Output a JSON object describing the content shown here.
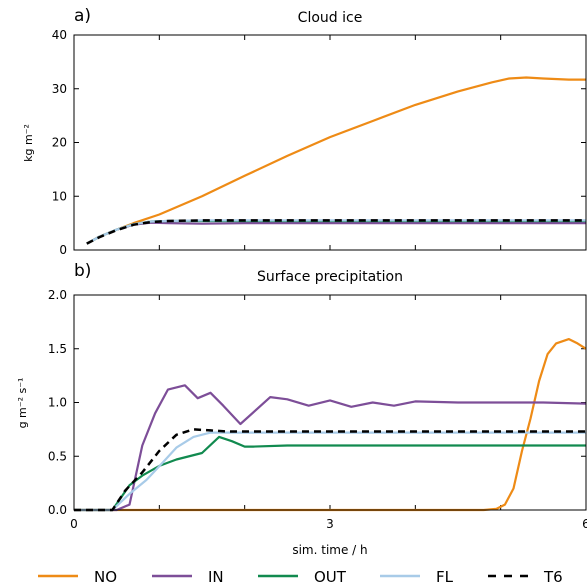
{
  "chart_data": [
    {
      "panel_label": "a)",
      "type": "line",
      "title": "Cloud ice",
      "xlabel": "",
      "ylabel": "kg m⁻²",
      "xlim": [
        0,
        6
      ],
      "ylim": [
        0,
        40
      ],
      "yticks": [
        "0",
        "10",
        "20",
        "30",
        "40"
      ],
      "grid": false,
      "series": [
        {
          "name": "NO",
          "color": "#ee8b16",
          "x": [
            0.15,
            0.3,
            0.5,
            0.7,
            1.0,
            1.5,
            2.0,
            2.5,
            3.0,
            3.5,
            4.0,
            4.5,
            4.9,
            5.1,
            5.3,
            5.5,
            5.8,
            6.0
          ],
          "y": [
            1.2,
            2.5,
            3.8,
            5.0,
            6.6,
            10.0,
            13.8,
            17.5,
            21.0,
            24.0,
            27.0,
            29.5,
            31.2,
            31.9,
            32.1,
            31.9,
            31.7,
            31.7
          ]
        },
        {
          "name": "IN",
          "color": "#7d4e98",
          "x": [
            0.15,
            0.3,
            0.5,
            0.7,
            0.9,
            1.1,
            1.5,
            2.0,
            3.0,
            4.0,
            5.0,
            6.0
          ],
          "y": [
            1.2,
            2.5,
            3.8,
            4.7,
            5.1,
            5.0,
            4.9,
            5.0,
            5.0,
            5.0,
            5.0,
            5.0
          ]
        },
        {
          "name": "OUT",
          "color": "#118a4f",
          "x": [
            0.15,
            0.3,
            0.5,
            0.7,
            0.9,
            1.1,
            1.5,
            2.0,
            3.0,
            4.0,
            5.0,
            6.0
          ],
          "y": [
            1.2,
            2.5,
            3.8,
            4.8,
            5.3,
            5.4,
            5.4,
            5.4,
            5.4,
            5.4,
            5.4,
            5.4
          ]
        },
        {
          "name": "FL",
          "color": "#a8cbe8",
          "x": [
            0.15,
            0.3,
            0.5,
            0.7,
            0.9,
            1.1,
            1.5,
            2.0,
            3.0,
            4.0,
            5.0,
            6.0
          ],
          "y": [
            1.2,
            2.5,
            3.8,
            4.8,
            5.3,
            5.4,
            5.5,
            5.5,
            5.5,
            5.5,
            5.5,
            5.5
          ]
        },
        {
          "name": "T6",
          "color": "#000000",
          "dashed": true,
          "x": [
            0.15,
            0.3,
            0.5,
            0.7,
            0.9,
            1.1,
            1.5,
            2.0,
            3.0,
            4.0,
            5.0,
            6.0
          ],
          "y": [
            1.2,
            2.4,
            3.7,
            4.7,
            5.2,
            5.4,
            5.5,
            5.5,
            5.5,
            5.5,
            5.5,
            5.5
          ]
        }
      ]
    },
    {
      "panel_label": "b)",
      "type": "line",
      "title": "Surface precipitation",
      "xlabel": "sim. time / h",
      "ylabel": "g m⁻² s⁻¹",
      "xlim": [
        0,
        6
      ],
      "ylim": [
        0,
        2.0
      ],
      "xticks": [
        "0",
        "3",
        "6"
      ],
      "yticks": [
        "0.0",
        "0.5",
        "1.0",
        "1.5",
        "2.0"
      ],
      "grid": false,
      "series": [
        {
          "name": "NO",
          "color": "#ee8b16",
          "x": [
            0.0,
            2.0,
            4.0,
            4.8,
            4.95,
            5.05,
            5.15,
            5.25,
            5.35,
            5.45,
            5.55,
            5.65,
            5.8,
            5.9,
            6.0
          ],
          "y": [
            0.0,
            0.0,
            0.0,
            0.0,
            0.01,
            0.05,
            0.2,
            0.55,
            0.85,
            1.2,
            1.45,
            1.55,
            1.59,
            1.55,
            1.5
          ]
        },
        {
          "name": "IN",
          "color": "#7d4e98",
          "x": [
            0.0,
            0.5,
            0.65,
            0.8,
            0.95,
            1.1,
            1.3,
            1.45,
            1.6,
            1.75,
            1.95,
            2.3,
            2.5,
            2.75,
            3.0,
            3.25,
            3.5,
            3.75,
            4.0,
            4.5,
            5.0,
            5.5,
            6.0
          ],
          "y": [
            0.0,
            0.0,
            0.05,
            0.6,
            0.9,
            1.12,
            1.16,
            1.04,
            1.09,
            0.97,
            0.8,
            1.05,
            1.03,
            0.97,
            1.02,
            0.96,
            1.0,
            0.97,
            1.01,
            1.0,
            1.0,
            1.0,
            0.99
          ]
        },
        {
          "name": "OUT",
          "color": "#118a4f",
          "x": [
            0.0,
            0.45,
            0.65,
            0.8,
            1.0,
            1.2,
            1.5,
            1.7,
            1.85,
            2.0,
            2.1,
            2.5,
            3.0,
            4.0,
            5.0,
            6.0
          ],
          "y": [
            0.0,
            0.0,
            0.23,
            0.32,
            0.41,
            0.47,
            0.53,
            0.68,
            0.64,
            0.59,
            0.59,
            0.6,
            0.6,
            0.6,
            0.6,
            0.6
          ]
        },
        {
          "name": "FL",
          "color": "#a8cbe8",
          "x": [
            0.0,
            0.45,
            0.65,
            0.85,
            1.05,
            1.2,
            1.4,
            1.6,
            1.8,
            2.0,
            2.5,
            3.0,
            4.0,
            5.0,
            6.0
          ],
          "y": [
            0.0,
            0.0,
            0.15,
            0.28,
            0.45,
            0.58,
            0.68,
            0.72,
            0.72,
            0.72,
            0.72,
            0.72,
            0.72,
            0.72,
            0.72
          ]
        },
        {
          "name": "T6",
          "color": "#000000",
          "dashed": true,
          "x": [
            0.0,
            0.45,
            0.6,
            0.8,
            1.0,
            1.2,
            1.4,
            1.6,
            1.8,
            2.0,
            2.5,
            3.0,
            4.0,
            5.0,
            6.0
          ],
          "y": [
            0.0,
            0.0,
            0.18,
            0.35,
            0.55,
            0.7,
            0.75,
            0.74,
            0.73,
            0.73,
            0.73,
            0.73,
            0.73,
            0.73,
            0.73
          ]
        }
      ]
    }
  ],
  "legend": {
    "placement": "bottom",
    "entries": [
      {
        "label": "NO",
        "color": "#ee8b16",
        "dashed": false
      },
      {
        "label": "IN",
        "color": "#7d4e98",
        "dashed": false
      },
      {
        "label": "OUT",
        "color": "#118a4f",
        "dashed": false
      },
      {
        "label": "FL",
        "color": "#a8cbe8",
        "dashed": false
      },
      {
        "label": "T6",
        "color": "#000000",
        "dashed": true
      }
    ]
  }
}
